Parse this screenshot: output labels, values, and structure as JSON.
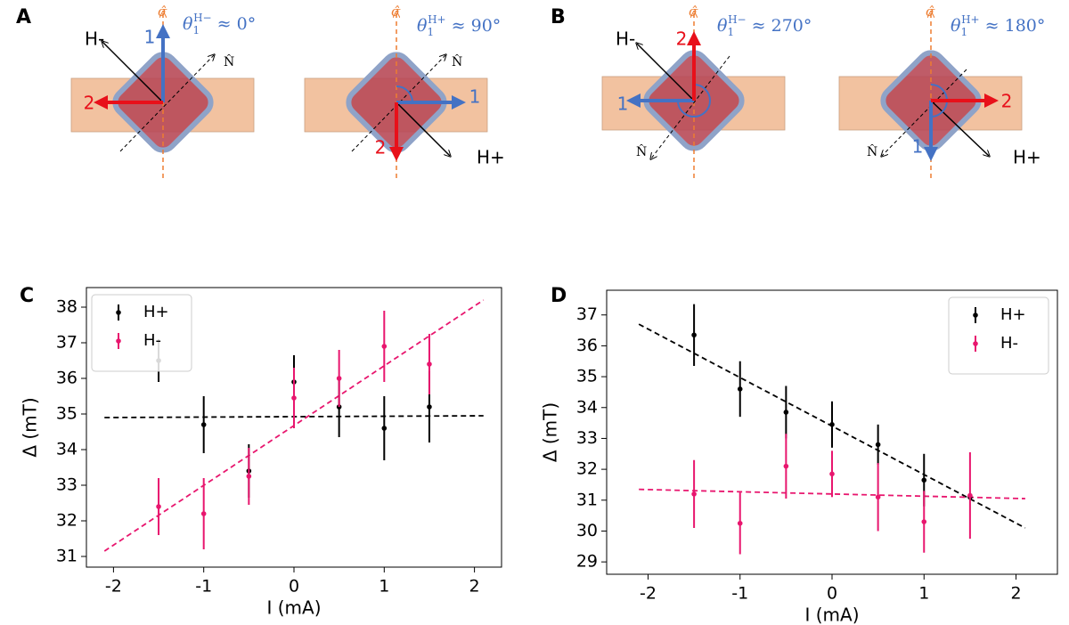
{
  "diagrams": {
    "panels": [
      "A",
      "B"
    ],
    "items": [
      {
        "sigma": "σ̂",
        "angle": {
          "symbol": "θ",
          "sub": "1",
          "sup": "H−",
          "rest": " ≈ 0°"
        },
        "field": "H-",
        "normal": "N̂",
        "one": "1",
        "two": "2"
      },
      {
        "sigma": "σ̂",
        "angle": {
          "symbol": "θ",
          "sub": "1",
          "sup": "H+",
          "rest": " ≈ 90°"
        },
        "field": "H+",
        "normal": "N̂",
        "one": "1",
        "two": "2"
      },
      {
        "sigma": "σ̂",
        "angle": {
          "symbol": "θ",
          "sub": "1",
          "sup": "H−",
          "rest": " ≈ 270°"
        },
        "field": "H-",
        "normal": "N̂",
        "one": "1",
        "two": "2"
      },
      {
        "sigma": "σ̂",
        "angle": {
          "symbol": "θ",
          "sub": "1",
          "sup": "H+",
          "rest": " ≈ 180°"
        },
        "field": "H+",
        "normal": "N̂",
        "one": "1",
        "two": "2"
      }
    ]
  },
  "chart_data": [
    {
      "type": "errorbar",
      "panel": "C",
      "xlabel": "I (mA)",
      "ylabel": "Δ (mT)",
      "legend": "upper left",
      "xlim": [
        -2.3,
        2.3
      ],
      "ylim": [
        30.7,
        38.55
      ],
      "xticks": [
        -2,
        -1,
        0,
        1,
        2
      ],
      "yticks": [
        31,
        32,
        33,
        34,
        35,
        36,
        37,
        38
      ],
      "x": [
        -1.5,
        -1,
        -0.5,
        0,
        0.5,
        1,
        1.5
      ],
      "series": [
        {
          "name": "H+",
          "color": "#000000",
          "values": [
            36.5,
            34.7,
            33.4,
            35.9,
            35.2,
            34.6,
            35.2
          ],
          "errors": [
            0.6,
            0.8,
            0.75,
            0.75,
            0.85,
            0.9,
            1.0
          ]
        },
        {
          "name": "H-",
          "color": "#e8166e",
          "values": [
            32.4,
            32.2,
            33.25,
            35.45,
            36.0,
            36.9,
            36.4
          ],
          "errors": [
            0.8,
            1.0,
            0.8,
            0.85,
            0.8,
            1.0,
            0.85
          ]
        }
      ],
      "fits": [
        {
          "color": "#000000",
          "x": [
            -2.1,
            2.1
          ],
          "values": [
            34.9,
            34.95
          ]
        },
        {
          "color": "#e8166e",
          "x": [
            -2.1,
            2.1
          ],
          "values": [
            31.15,
            38.2
          ]
        }
      ]
    },
    {
      "type": "errorbar",
      "panel": "D",
      "xlabel": "I (mA)",
      "ylabel": "Δ (mT)",
      "legend": "upper right",
      "xlim": [
        -2.45,
        2.45
      ],
      "ylim": [
        28.6,
        37.8
      ],
      "xticks": [
        -2,
        -1,
        0,
        1,
        2
      ],
      "yticks": [
        29,
        30,
        31,
        32,
        33,
        34,
        35,
        36,
        37
      ],
      "x": [
        -1.5,
        -1,
        -0.5,
        0,
        0.5,
        1,
        1.5
      ],
      "series": [
        {
          "name": "H+",
          "color": "#000000",
          "values": [
            36.35,
            34.6,
            33.85,
            33.45,
            32.8,
            31.65,
            31.1
          ],
          "errors": [
            1.0,
            0.9,
            0.85,
            0.75,
            0.65,
            0.85,
            0.1
          ]
        },
        {
          "name": "H-",
          "color": "#e8166e",
          "values": [
            31.2,
            30.25,
            32.1,
            31.85,
            31.1,
            30.3,
            31.15
          ],
          "errors": [
            1.1,
            1.0,
            1.05,
            0.75,
            1.1,
            1.0,
            1.4
          ]
        }
      ],
      "fits": [
        {
          "color": "#000000",
          "x": [
            -2.1,
            2.1
          ],
          "values": [
            36.7,
            30.1
          ]
        },
        {
          "color": "#e8166e",
          "x": [
            -2.1,
            2.1
          ],
          "values": [
            31.35,
            31.05
          ]
        }
      ]
    }
  ]
}
